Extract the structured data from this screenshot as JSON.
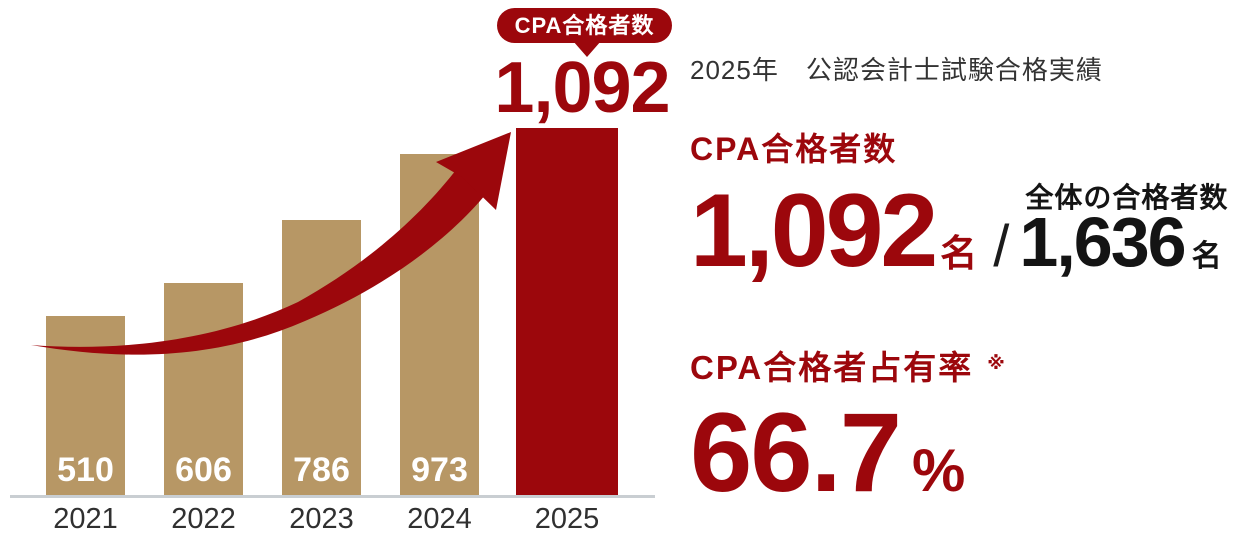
{
  "colors": {
    "brand_red": "#9c070c",
    "bar_tan": "#b79765",
    "baseline_gray": "#c9ced2",
    "title_gray": "#333333",
    "number_black": "#141414",
    "bar_value_white": "#ffffff"
  },
  "chart_data": {
    "type": "bar",
    "categories": [
      "2021",
      "2022",
      "2023",
      "2024",
      "2025"
    ],
    "values": [
      510,
      606,
      786,
      973,
      1092
    ],
    "value_labels": [
      "510",
      "606",
      "786",
      "973",
      "1,092"
    ],
    "highlight": {
      "category": "2025",
      "value": 1092,
      "value_label": "1,092",
      "callout": "CPA合格者数"
    },
    "title": "",
    "xlabel": "",
    "ylabel": "",
    "ylim": [
      0,
      1200
    ],
    "grid": false,
    "legend": false,
    "annotations": [
      "growth-arrow from 2021 toward 2025 bar"
    ]
  },
  "panel": {
    "title": "2025年　公認会計士試験合格実績",
    "cpa": {
      "heading": "CPA合格者数",
      "value": "1,092",
      "unit": "名"
    },
    "separator": "/",
    "total": {
      "label": "全体の合格者数",
      "value": "1,636",
      "unit": "名"
    },
    "share": {
      "heading": "CPA合格者占有率",
      "note_mark": "※",
      "value": "66.7",
      "unit": "%"
    }
  }
}
